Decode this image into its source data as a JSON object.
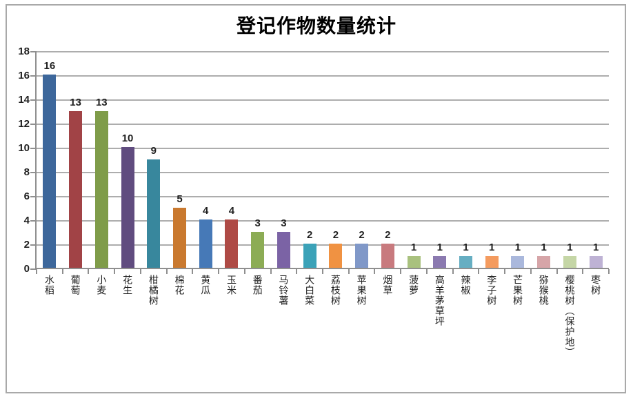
{
  "chart_data": {
    "type": "bar",
    "title": "登记作物数量统计",
    "xlabel": "",
    "ylabel": "",
    "legend": "none",
    "grid": "horizontal",
    "data_labels": "above-bars",
    "ylim": [
      0,
      18
    ],
    "ytick_step": 2,
    "ytick_labels": [
      0,
      2,
      4,
      6,
      8,
      10,
      12,
      14,
      16,
      18
    ],
    "categories": [
      "水稻",
      "葡萄",
      "小麦",
      "花生",
      "柑橘树",
      "棉花",
      "黄瓜",
      "玉米",
      "番茄",
      "马铃薯",
      "大白菜",
      "荔枝树",
      "苹果树",
      "烟草",
      "菠萝",
      "高羊茅草坪",
      "辣椒",
      "李子树",
      "芒果树",
      "猕猴桃",
      "樱桃树（保护地）",
      "枣树"
    ],
    "values": [
      16,
      13,
      13,
      10,
      9,
      5,
      4,
      4,
      3,
      3,
      2,
      2,
      2,
      2,
      1,
      1,
      1,
      1,
      1,
      1,
      1,
      1
    ],
    "point_colors": [
      "#3D679B",
      "#A14346",
      "#7F9C49",
      "#604C7F",
      "#38879D",
      "#C9792F",
      "#4679B7",
      "#AE4A45",
      "#8CAC55",
      "#7B63A5",
      "#3BA2B8",
      "#F09242",
      "#8098C8",
      "#C87A7E",
      "#A9C17E",
      "#8B7AB0",
      "#66AEC2",
      "#F49B5F",
      "#AAB8DC",
      "#D6A5A8",
      "#C5D6A6",
      "#BEB2D4"
    ]
  },
  "colors": {
    "background": "#FFFFFF",
    "frame_border": "#A9A9A9",
    "gridline": "#ADADAD",
    "axis": "#8F8F8F",
    "text": "#1F1F1F",
    "title_text": "#000000"
  }
}
